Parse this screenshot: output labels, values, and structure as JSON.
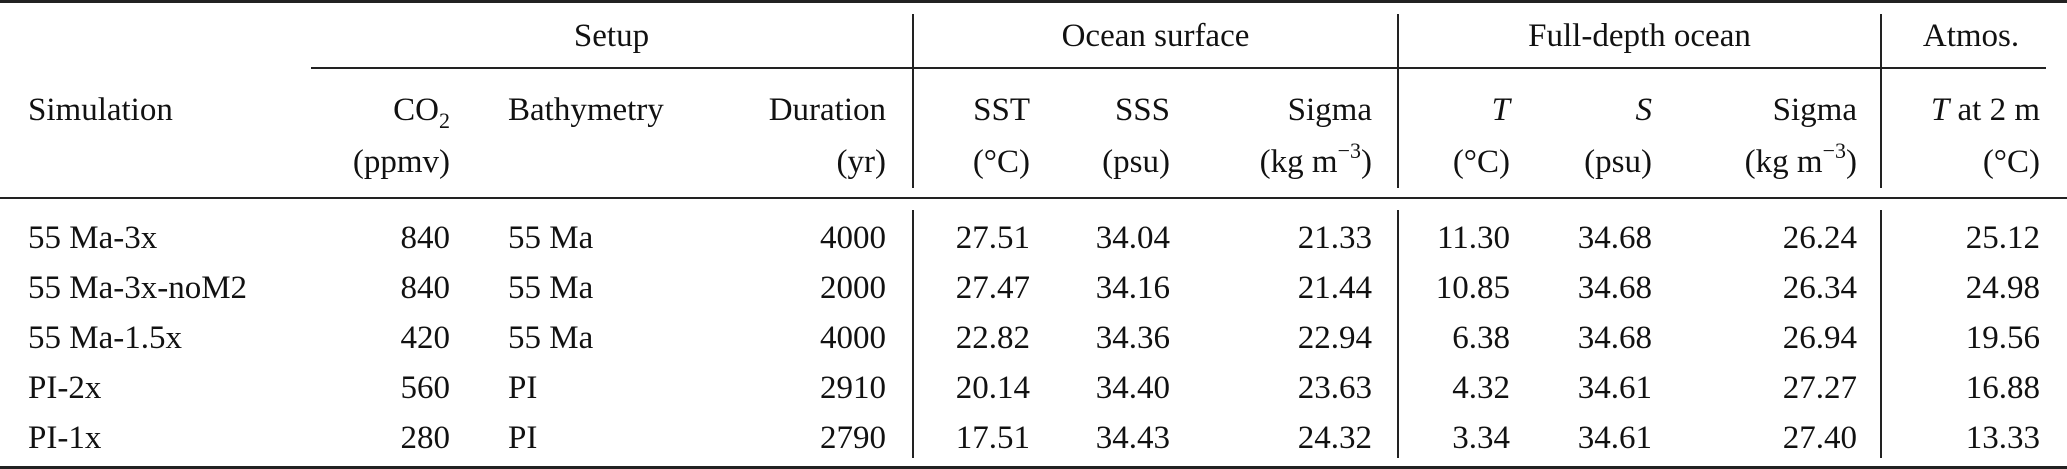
{
  "header": {
    "groups": {
      "setup": "Setup",
      "ocean_surface": "Ocean surface",
      "full_depth": "Full-depth ocean",
      "atmos": "Atmos."
    },
    "columns": {
      "simulation": "Simulation",
      "co2_name": "CO",
      "co2_sub": "2",
      "co2_unit": "(ppmv)",
      "bathymetry": "Bathymetry",
      "duration": "Duration",
      "duration_unit": "(yr)",
      "sst": "SST",
      "sst_unit": "(°C)",
      "sss": "SSS",
      "sss_unit": "(psu)",
      "sigma_surf": "Sigma",
      "sigma_unit_pre": "(kg m",
      "sigma_unit_sup": "−3",
      "sigma_unit_post": ")",
      "t_full": "T",
      "t_full_unit": "(°C)",
      "s_full": "S",
      "s_full_unit": "(psu)",
      "sigma_full": "Sigma",
      "atm_t": "T",
      "atm_t_rest": " at 2 m",
      "atm_unit": "(°C)"
    }
  },
  "rows": [
    [
      "55 Ma-3x",
      "840",
      "55 Ma",
      "4000",
      "27.51",
      "34.04",
      "21.33",
      "11.30",
      "34.68",
      "26.24",
      "25.12"
    ],
    [
      "55 Ma-3x-noM2",
      "840",
      "55 Ma",
      "2000",
      "27.47",
      "34.16",
      "21.44",
      "10.85",
      "34.68",
      "26.34",
      "24.98"
    ],
    [
      "55 Ma-1.5x",
      "420",
      "55 Ma",
      "4000",
      "22.82",
      "34.36",
      "22.94",
      "6.38",
      "34.68",
      "26.94",
      "19.56"
    ],
    [
      "PI-2x",
      "560",
      "PI",
      "2910",
      "20.14",
      "34.40",
      "23.63",
      "4.32",
      "34.61",
      "27.27",
      "16.88"
    ],
    [
      "PI-1x",
      "280",
      "PI",
      "2790",
      "17.51",
      "34.43",
      "24.32",
      "3.34",
      "34.61",
      "27.40",
      "13.33"
    ]
  ]
}
